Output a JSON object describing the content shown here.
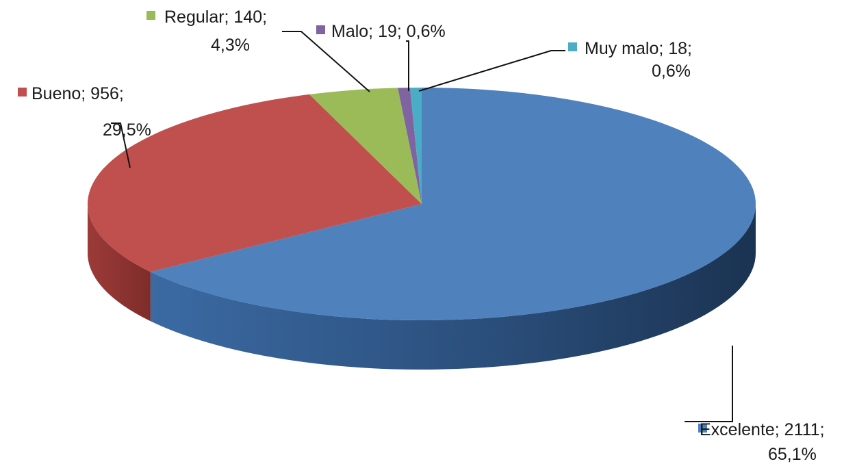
{
  "chart_data": {
    "type": "pie",
    "title": "",
    "legend": "data-labels",
    "slices": [
      {
        "name": "Excelente",
        "value": 2111,
        "percent": "65,1%",
        "color": "#4f81bd",
        "line1": "Excelente; 2111;",
        "line2": "65,1%"
      },
      {
        "name": "Bueno",
        "value": 956,
        "percent": "29,5%",
        "color": "#c0504d",
        "line1": "Bueno; 956;",
        "line2": "29,5%"
      },
      {
        "name": "Regular",
        "value": 140,
        "percent": "4,3%",
        "color": "#9bbb59",
        "line1": "Regular; 140;",
        "line2": "4,3%"
      },
      {
        "name": "Malo",
        "value": 19,
        "percent": "0,6%",
        "color": "#8064a2",
        "line1": "Malo; 19; 0,6%",
        "line2": ""
      },
      {
        "name": "Muy malo",
        "value": 18,
        "percent": "0,6%",
        "color": "#4bacc6",
        "line1": "Muy malo; 18;",
        "line2": "0,6%"
      }
    ]
  }
}
